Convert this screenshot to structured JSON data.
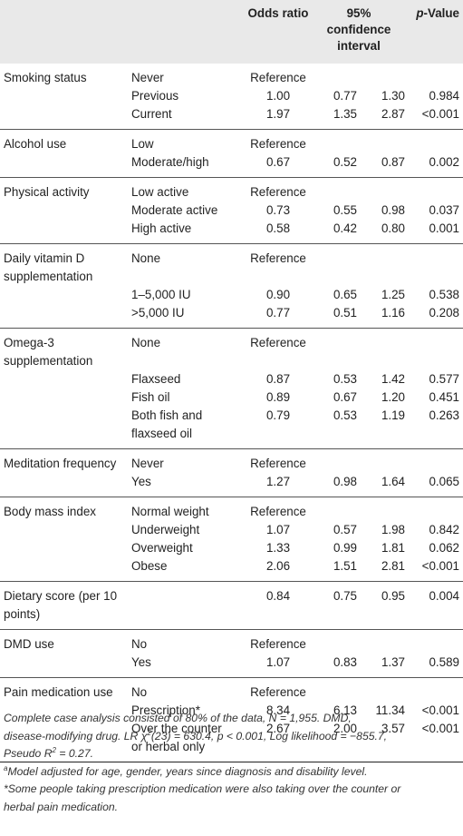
{
  "header": {
    "odds_ratio": "Odds ratio",
    "ci_line1": "95%",
    "ci_line2": "confidence",
    "ci_line3": "interval",
    "p_italic": "p",
    "p_rest": "-Value"
  },
  "groups": [
    {
      "label": [
        "Smoking status"
      ],
      "rows": [
        {
          "level": [
            "Never"
          ],
          "or": "Reference",
          "lo": "",
          "hi": "",
          "p": ""
        },
        {
          "level": [
            "Previous"
          ],
          "or": "1.00",
          "lo": "0.77",
          "hi": "1.30",
          "p": "0.984"
        },
        {
          "level": [
            "Current"
          ],
          "or": "1.97",
          "lo": "1.35",
          "hi": "2.87",
          "p": "<0.001"
        }
      ]
    },
    {
      "label": [
        "Alcohol use"
      ],
      "rows": [
        {
          "level": [
            "Low"
          ],
          "or": "Reference",
          "lo": "",
          "hi": "",
          "p": ""
        },
        {
          "level": [
            "Moderate/high"
          ],
          "or": "0.67",
          "lo": "0.52",
          "hi": "0.87",
          "p": "0.002"
        }
      ]
    },
    {
      "label": [
        "Physical activity"
      ],
      "rows": [
        {
          "level": [
            "Low active"
          ],
          "or": "Reference",
          "lo": "",
          "hi": "",
          "p": ""
        },
        {
          "level": [
            "Moderate active"
          ],
          "or": "0.73",
          "lo": "0.55",
          "hi": "0.98",
          "p": "0.037"
        },
        {
          "level": [
            "High active"
          ],
          "or": "0.58",
          "lo": "0.42",
          "hi": "0.80",
          "p": "0.001"
        }
      ]
    },
    {
      "label": [
        "Daily vitamin D",
        "supplementation"
      ],
      "rows": [
        {
          "level": [
            "None",
            ""
          ],
          "or": "Reference",
          "lo": "",
          "hi": "",
          "p": ""
        },
        {
          "level": [
            "1–5,000 IU"
          ],
          "or": "0.90",
          "lo": "0.65",
          "hi": "1.25",
          "p": "0.538"
        },
        {
          "level": [
            ">5,000 IU"
          ],
          "or": "0.77",
          "lo": "0.51",
          "hi": "1.16",
          "p": "0.208"
        }
      ]
    },
    {
      "label": [
        "Omega-3",
        "supplementation"
      ],
      "rows": [
        {
          "level": [
            "None",
            ""
          ],
          "or": "Reference",
          "lo": "",
          "hi": "",
          "p": ""
        },
        {
          "level": [
            "Flaxseed"
          ],
          "or": "0.87",
          "lo": "0.53",
          "hi": "1.42",
          "p": "0.577"
        },
        {
          "level": [
            "Fish oil"
          ],
          "or": "0.89",
          "lo": "0.67",
          "hi": "1.20",
          "p": "0.451"
        },
        {
          "level": [
            "Both fish and",
            "flaxseed oil"
          ],
          "or": "0.79",
          "lo": "0.53",
          "hi": "1.19",
          "p": "0.263"
        }
      ]
    },
    {
      "label": [
        "Meditation frequency"
      ],
      "rows": [
        {
          "level": [
            "Never"
          ],
          "or": "Reference",
          "lo": "",
          "hi": "",
          "p": ""
        },
        {
          "level": [
            "Yes"
          ],
          "or": "1.27",
          "lo": "0.98",
          "hi": "1.64",
          "p": "0.065"
        }
      ]
    },
    {
      "label": [
        "Body mass index"
      ],
      "rows": [
        {
          "level": [
            "Normal weight"
          ],
          "or": "Reference",
          "lo": "",
          "hi": "",
          "p": ""
        },
        {
          "level": [
            "Underweight"
          ],
          "or": "1.07",
          "lo": "0.57",
          "hi": "1.98",
          "p": "0.842"
        },
        {
          "level": [
            "Overweight"
          ],
          "or": "1.33",
          "lo": "0.99",
          "hi": "1.81",
          "p": "0.062"
        },
        {
          "level": [
            "Obese"
          ],
          "or": "2.06",
          "lo": "1.51",
          "hi": "2.81",
          "p": "<0.001"
        }
      ]
    },
    {
      "label": [
        "Dietary score (per 10",
        "points)"
      ],
      "rows": [
        {
          "level": [
            ""
          ],
          "or": "0.84",
          "lo": "0.75",
          "hi": "0.95",
          "p": "0.004"
        }
      ]
    },
    {
      "label": [
        "DMD use"
      ],
      "rows": [
        {
          "level": [
            "No"
          ],
          "or": "Reference",
          "lo": "",
          "hi": "",
          "p": ""
        },
        {
          "level": [
            "Yes"
          ],
          "or": "1.07",
          "lo": "0.83",
          "hi": "1.37",
          "p": "0.589"
        }
      ]
    },
    {
      "label": [
        "Pain medication use"
      ],
      "rows": [
        {
          "level": [
            "No"
          ],
          "or": "Reference",
          "lo": "",
          "hi": "",
          "p": ""
        },
        {
          "level": [
            "Prescription*"
          ],
          "or": "8.34",
          "lo": "6.13",
          "hi": "11.34",
          "p": "<0.001"
        },
        {
          "level": [
            "Over the counter",
            "or herbal only"
          ],
          "or": "2.67",
          "lo": "2.00",
          "hi": "3.57",
          "p": "<0.001"
        }
      ]
    }
  ],
  "notes": {
    "line1_a": "Complete case analysis consisted of 80% of the data, N = 1,955. DMD,",
    "line1_b": "disease-modifying drug. LR χ",
    "line1_sup": "2",
    "line1_c": "(23) = 630.4, p < 0.001, Log likelihood = −855.7,",
    "line1_d": "Pseudo R",
    "line1_sup2": "2",
    "line1_e": " = 0.27.",
    "note_a_marker": "a",
    "note_a": "Model adjusted for age, gender, years since diagnosis and disability level.",
    "note_star_1": "*Some people taking prescription medication were also taking over the counter or",
    "note_star_2": "herbal pain medication."
  }
}
